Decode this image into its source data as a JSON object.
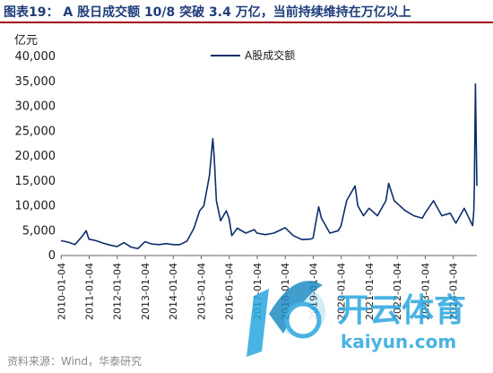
{
  "header": {
    "title": "图表19： A 股日成交额 10/8 突破 3.4 万亿，当前持续维持在万亿以上"
  },
  "footer": {
    "source": "资料来源：Wind，华泰研究"
  },
  "watermark": {
    "brand_cn": "开云体育",
    "brand_url": "kaiyun.com",
    "logo_icon": "kaiyun-logo-icon"
  },
  "colors": {
    "line": "#0c2d6b",
    "title": "#1f3d7a",
    "rule": "#a0001e",
    "watermark": "#2aa7df"
  },
  "chart_data": {
    "type": "line",
    "ylabel": "亿元",
    "ylim": [
      0,
      40000
    ],
    "yticks": [
      "0",
      "5,000",
      "10,000",
      "15,000",
      "20,000",
      "25,000",
      "30,000",
      "35,000",
      "40,000"
    ],
    "xticks": [
      "2010-01-04",
      "2011-01-04",
      "2012-01-04",
      "2013-01-04",
      "2014-01-04",
      "2015-01-04",
      "2016-01-04",
      "2017-01-04",
      "2018-01-04",
      "2019-01-04",
      "2020-01-04",
      "2021-01-04",
      "2022-01-04",
      "2023-01-04",
      "2024-01-04"
    ],
    "legend_position": "top-center",
    "series": [
      {
        "name": "A股成交额",
        "x": [
          2010.0,
          2010.25,
          2010.5,
          2010.75,
          2010.9,
          2011.0,
          2011.25,
          2011.5,
          2011.75,
          2012.0,
          2012.25,
          2012.5,
          2012.75,
          2012.95,
          2013.0,
          2013.25,
          2013.5,
          2013.75,
          2014.0,
          2014.25,
          2014.5,
          2014.75,
          2014.95,
          2015.1,
          2015.3,
          2015.42,
          2015.47,
          2015.55,
          2015.7,
          2015.9,
          2016.0,
          2016.1,
          2016.3,
          2016.6,
          2016.9,
          2017.0,
          2017.3,
          2017.6,
          2017.9,
          2018.0,
          2018.3,
          2018.6,
          2018.9,
          2019.0,
          2019.2,
          2019.3,
          2019.6,
          2019.9,
          2020.0,
          2020.2,
          2020.5,
          2020.6,
          2020.8,
          2021.0,
          2021.3,
          2021.6,
          2021.7,
          2021.9,
          2022.0,
          2022.3,
          2022.6,
          2022.9,
          2023.0,
          2023.3,
          2023.6,
          2023.9,
          2024.0,
          2024.1,
          2024.4,
          2024.7,
          2024.74,
          2024.76,
          2024.8,
          2024.85
        ],
        "values": [
          3000,
          2700,
          2200,
          3800,
          5000,
          3300,
          3000,
          2500,
          2100,
          1800,
          2600,
          1700,
          1400,
          2500,
          2800,
          2300,
          2200,
          2400,
          2200,
          2200,
          2900,
          5500,
          9000,
          10000,
          16000,
          23500,
          20000,
          11000,
          7000,
          9000,
          7500,
          4000,
          5500,
          4500,
          5200,
          4500,
          4200,
          4500,
          5300,
          5600,
          4000,
          3200,
          3300,
          3500,
          9800,
          7500,
          4500,
          5000,
          6000,
          11000,
          14000,
          10000,
          8000,
          9500,
          8000,
          11000,
          14500,
          11000,
          10500,
          9000,
          8000,
          7500,
          8500,
          11000,
          8000,
          8500,
          7500,
          6500,
          9500,
          6000,
          9000,
          14000,
          34500,
          14000
        ]
      }
    ]
  }
}
